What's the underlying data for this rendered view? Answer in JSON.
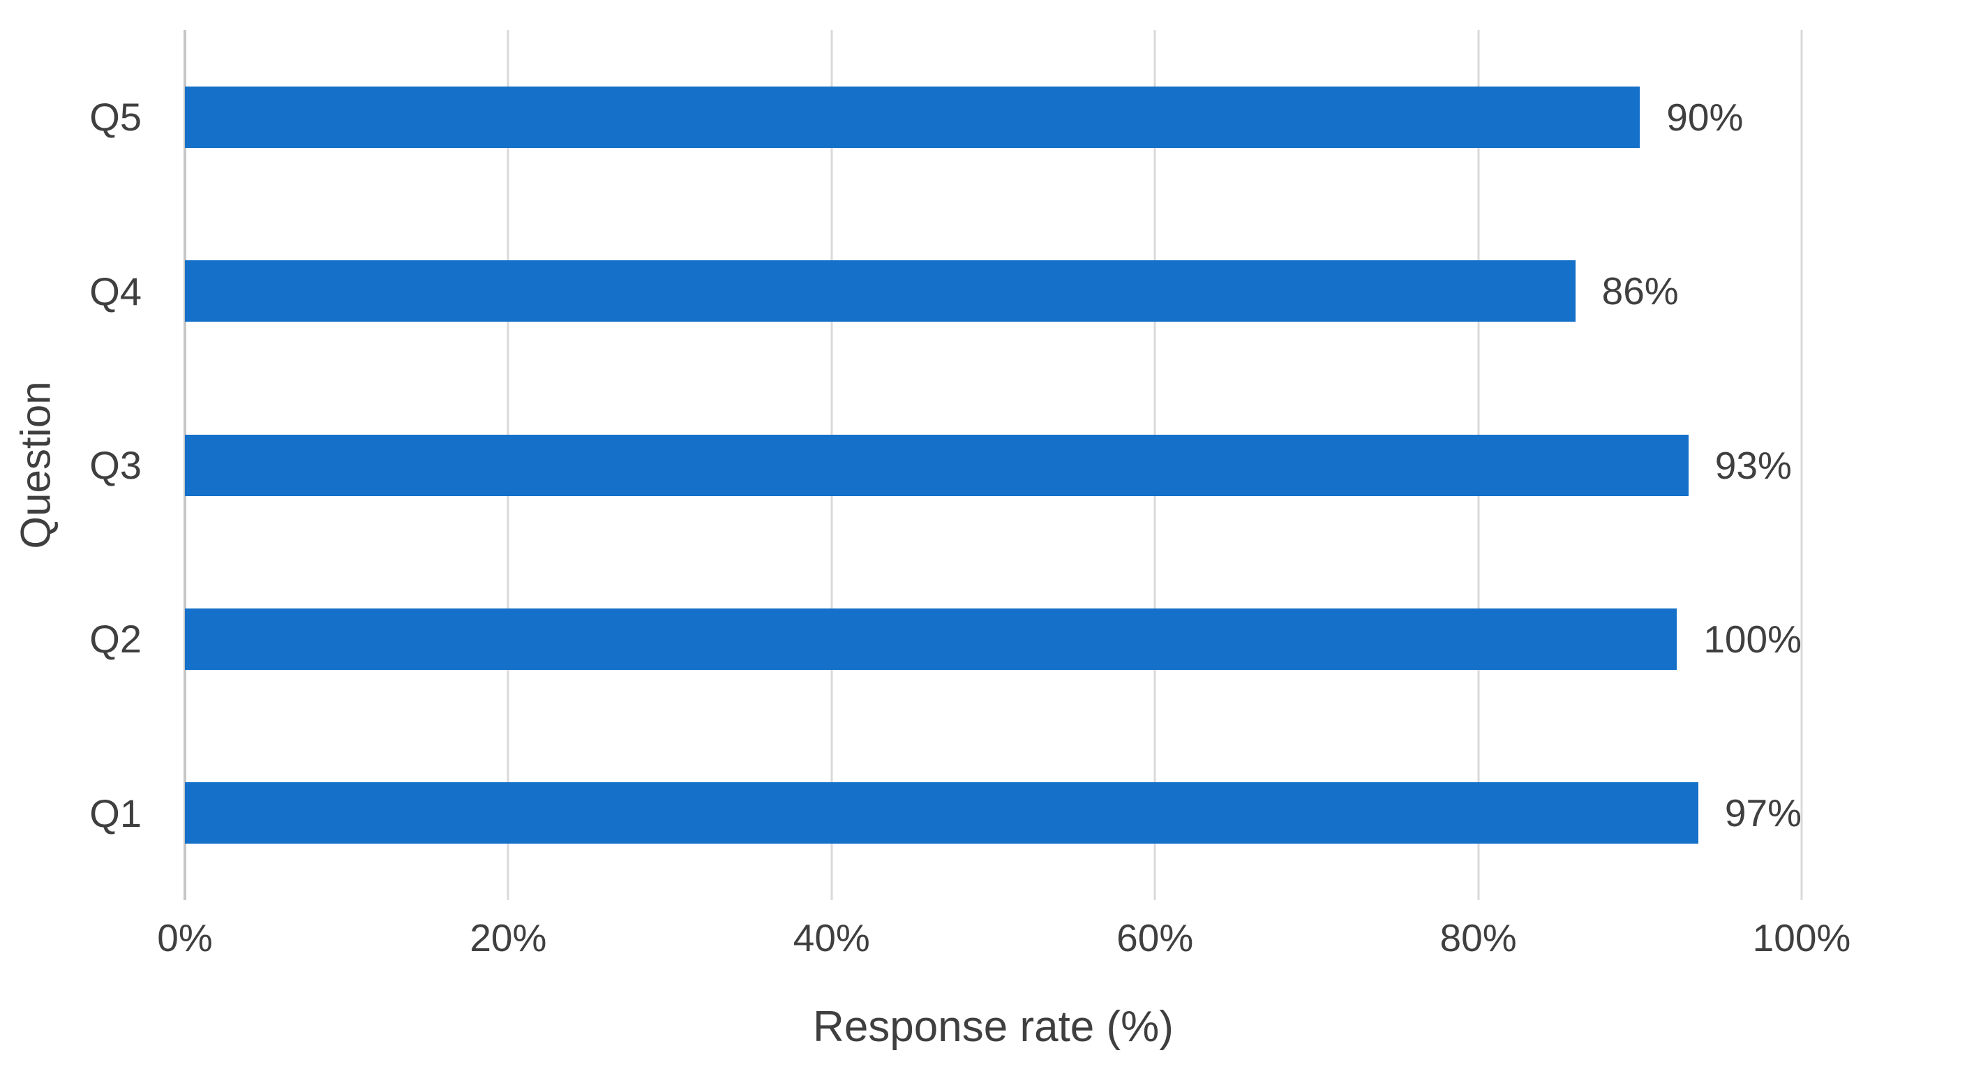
{
  "chart_data": {
    "type": "bar",
    "orientation": "horizontal",
    "xlabel": "Response rate (%)",
    "ylabel": "Question",
    "categories": [
      "Q1",
      "Q2",
      "Q3",
      "Q4",
      "Q5"
    ],
    "values": [
      97,
      100,
      93,
      86,
      90
    ],
    "value_labels": [
      "97%",
      "100%",
      "93%",
      "86%",
      "90%"
    ],
    "display_order_top_to_bottom": [
      "Q5",
      "Q4",
      "Q3",
      "Q2",
      "Q1"
    ],
    "x_ticks": [
      {
        "label": "0%",
        "value": 0
      },
      {
        "label": "20%",
        "value": 20
      },
      {
        "label": "40%",
        "value": 40
      },
      {
        "label": "60%",
        "value": 60
      },
      {
        "label": "80%",
        "value": 80
      },
      {
        "label": "100%",
        "value": 100
      }
    ],
    "xlim": [
      0,
      100
    ],
    "grid": "vertical-only",
    "legend": "none",
    "colors": {
      "bar": "#1470C8",
      "gridline": "#D9D9D9",
      "axis_line": "#C6C6C6",
      "text": "#3F3F3F",
      "background": "#FFFFFF"
    }
  }
}
